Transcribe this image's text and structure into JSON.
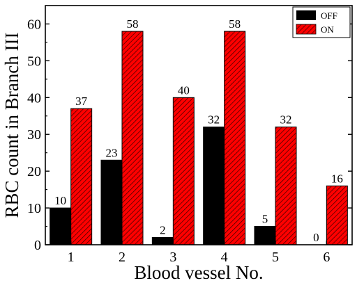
{
  "chart_data": {
    "type": "bar",
    "categories": [
      "1",
      "2",
      "3",
      "4",
      "5",
      "6"
    ],
    "series": [
      {
        "name": "OFF",
        "values": [
          10,
          23,
          2,
          32,
          5,
          0
        ],
        "color": "#000000",
        "hatch": false
      },
      {
        "name": "ON",
        "values": [
          37,
          58,
          40,
          58,
          32,
          16
        ],
        "color": "#ff0000",
        "hatch": true
      }
    ],
    "xlabel": "Blood vessel No.",
    "ylabel": "RBC count in Branch III",
    "ylim": [
      0,
      65
    ],
    "yticks": [
      0,
      10,
      20,
      30,
      40,
      50,
      60
    ],
    "grid": false,
    "legend_position": "top-right",
    "data_labels": true
  }
}
